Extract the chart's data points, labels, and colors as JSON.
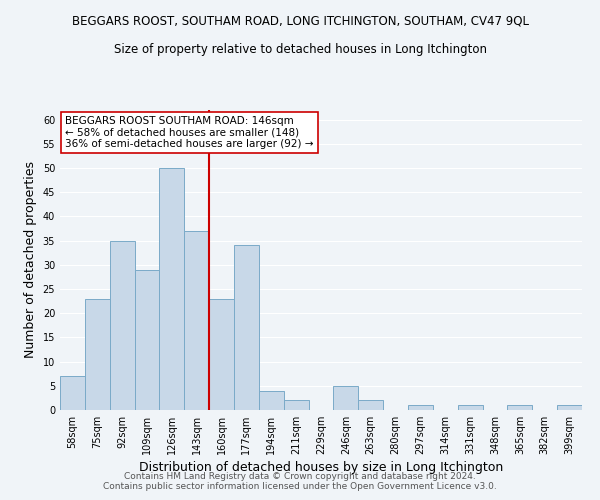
{
  "title": "BEGGARS ROOST, SOUTHAM ROAD, LONG ITCHINGTON, SOUTHAM, CV47 9QL",
  "subtitle": "Size of property relative to detached houses in Long Itchington",
  "xlabel": "Distribution of detached houses by size in Long Itchington",
  "ylabel": "Number of detached properties",
  "bin_labels": [
    "58sqm",
    "75sqm",
    "92sqm",
    "109sqm",
    "126sqm",
    "143sqm",
    "160sqm",
    "177sqm",
    "194sqm",
    "211sqm",
    "229sqm",
    "246sqm",
    "263sqm",
    "280sqm",
    "297sqm",
    "314sqm",
    "331sqm",
    "348sqm",
    "365sqm",
    "382sqm",
    "399sqm"
  ],
  "bar_values": [
    7,
    23,
    35,
    29,
    50,
    37,
    23,
    34,
    4,
    2,
    0,
    5,
    2,
    0,
    1,
    0,
    1,
    0,
    1,
    0,
    1
  ],
  "bar_color": "#c8d8e8",
  "bar_edge_color": "#7aaac8",
  "vline_color": "#cc0000",
  "annotation_box_text": "BEGGARS ROOST SOUTHAM ROAD: 146sqm\n← 58% of detached houses are smaller (148)\n36% of semi-detached houses are larger (92) →",
  "annotation_box_color": "#ffffff",
  "annotation_box_edge": "#cc0000",
  "ylim": [
    0,
    62
  ],
  "yticks": [
    0,
    5,
    10,
    15,
    20,
    25,
    30,
    35,
    40,
    45,
    50,
    55,
    60
  ],
  "footer_line1": "Contains HM Land Registry data © Crown copyright and database right 2024.",
  "footer_line2": "Contains public sector information licensed under the Open Government Licence v3.0.",
  "background_color": "#f0f4f8",
  "grid_color": "#ffffff",
  "title_fontsize": 8.5,
  "subtitle_fontsize": 8.5,
  "axis_label_fontsize": 9,
  "tick_fontsize": 7,
  "annotation_fontsize": 7.5,
  "footer_fontsize": 6.5
}
